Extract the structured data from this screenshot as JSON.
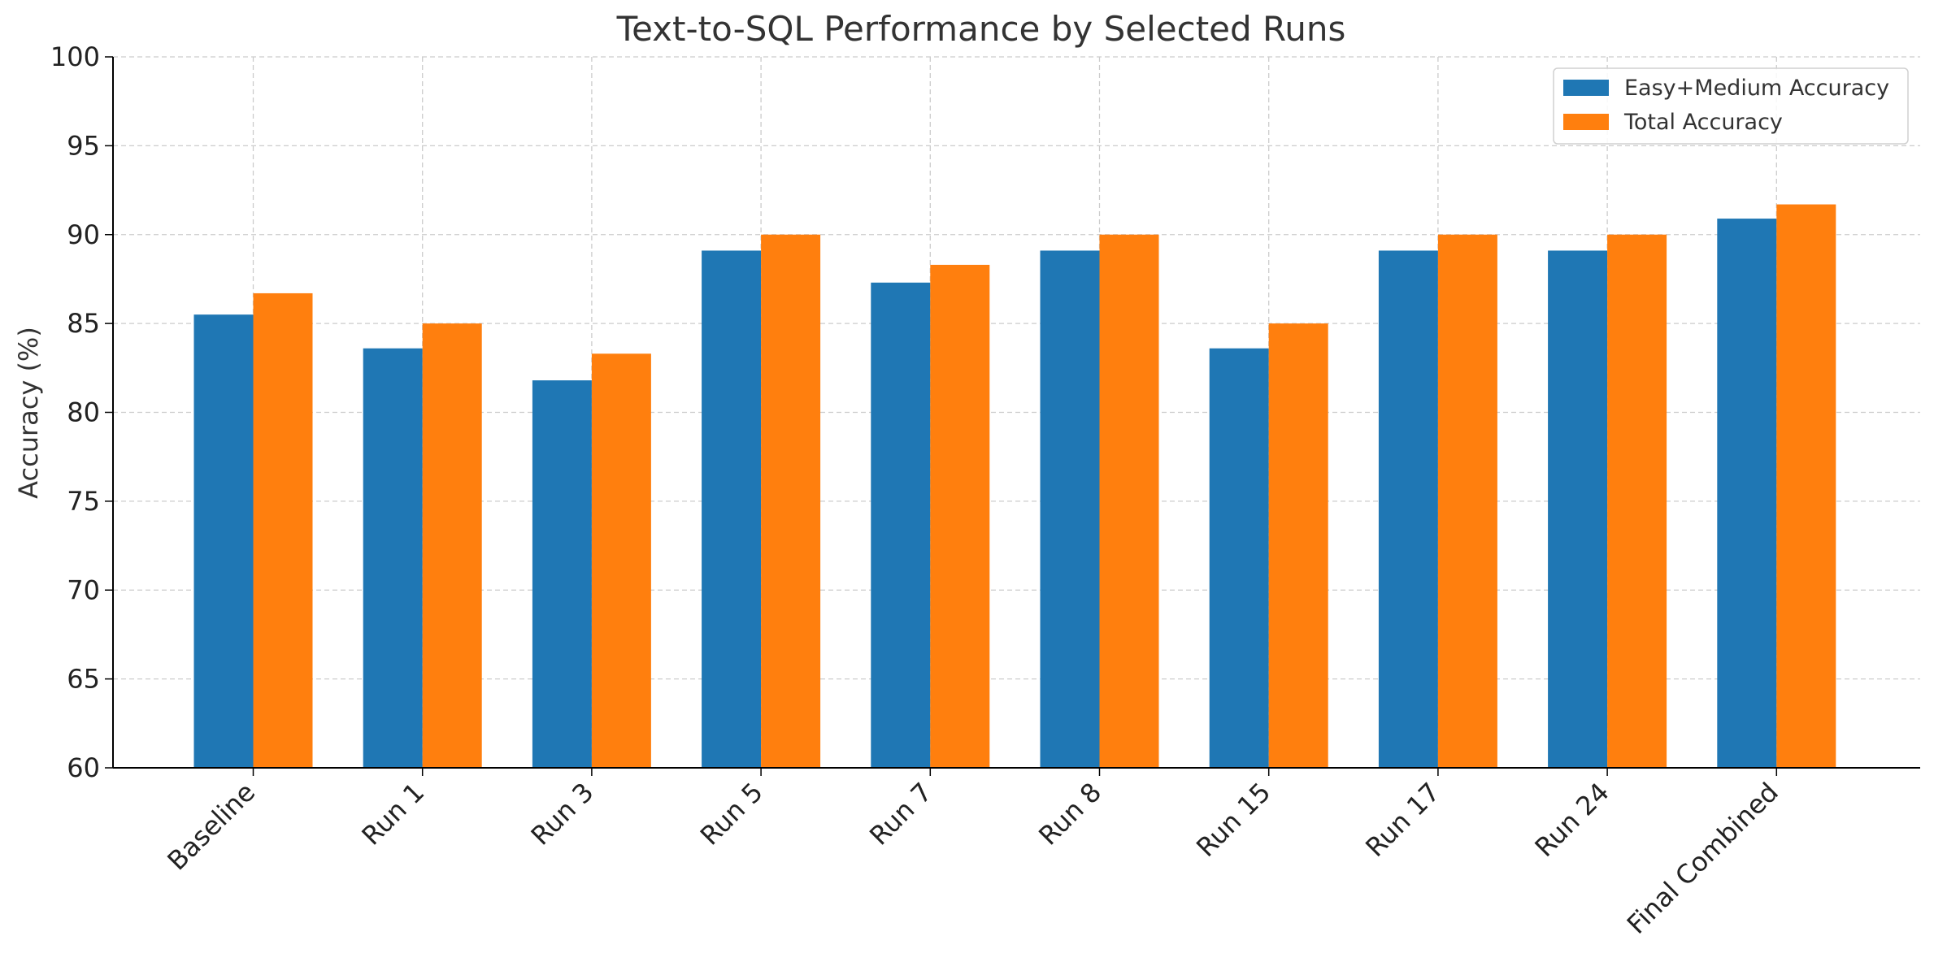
{
  "chart_data": {
    "type": "bar",
    "title": "Text-to-SQL Performance by Selected Runs",
    "xlabel": "",
    "ylabel": "Accuracy (%)",
    "ylim": [
      60,
      100
    ],
    "yticks": [
      60,
      65,
      70,
      75,
      80,
      85,
      90,
      95,
      100
    ],
    "grid": true,
    "legend_position": "top-right",
    "categories": [
      "Baseline",
      "Run 1",
      "Run 3",
      "Run 5",
      "Run 7",
      "Run 8",
      "Run 15",
      "Run 17",
      "Run 24",
      "Final Combined"
    ],
    "series": [
      {
        "name": "Easy+Medium Accuracy",
        "color": "#1f77b4",
        "values": [
          85.5,
          83.6,
          81.8,
          89.1,
          87.3,
          89.1,
          83.6,
          89.1,
          89.1,
          90.9
        ]
      },
      {
        "name": "Total Accuracy",
        "color": "#ff7f0e",
        "values": [
          86.7,
          85.0,
          83.3,
          90.0,
          88.3,
          90.0,
          85.0,
          90.0,
          90.0,
          91.7
        ]
      }
    ]
  }
}
